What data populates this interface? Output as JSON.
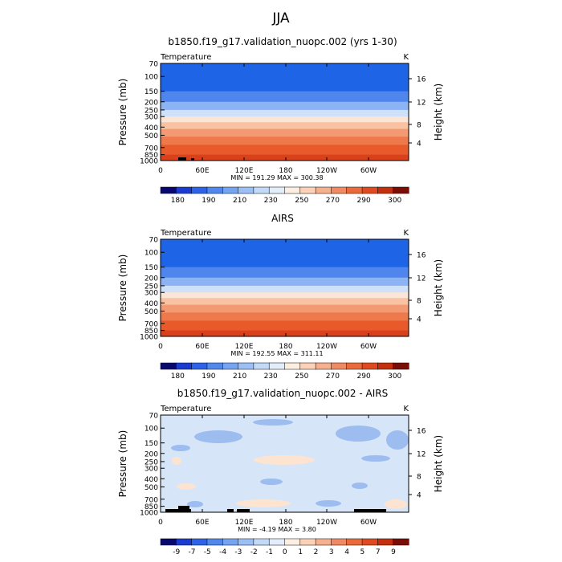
{
  "figure": {
    "title": "JJA",
    "title_color": "#8a8a8a"
  },
  "chart_data": [
    {
      "type": "heatmap",
      "title": "b1850.f19_g17.validation_nuopc.002 (yrs 1-30)",
      "variable": "Temperature",
      "units": "K",
      "ylabel": "Pressure (mb)",
      "y2label": "Height (km)",
      "x_ticks": [
        "0",
        "60E",
        "120E",
        "180",
        "120W",
        "60W"
      ],
      "y_ticks": [
        "70",
        "100",
        "150",
        "200",
        "250",
        "300",
        "400",
        "500",
        "700",
        "850",
        "1000"
      ],
      "y2_ticks": [
        "16",
        "12",
        "8",
        "4"
      ],
      "minmax_text": "MIN = 191.29   MAX = 300.38",
      "colorbar_labels": [
        "180",
        "190",
        "210",
        "230",
        "250",
        "270",
        "290",
        "300"
      ],
      "bands": [
        {
          "p_top": 70,
          "p_bot": 150,
          "color": "#1d64e6"
        },
        {
          "p_top": 150,
          "p_bot": 200,
          "color": "#4f86ee"
        },
        {
          "p_top": 200,
          "p_bot": 250,
          "color": "#8cb3f4"
        },
        {
          "p_top": 250,
          "p_bot": 300,
          "color": "#cfe1f8"
        },
        {
          "p_top": 300,
          "p_bot": 350,
          "color": "#fbe5d6"
        },
        {
          "p_top": 350,
          "p_bot": 420,
          "color": "#f9c3a3"
        },
        {
          "p_top": 420,
          "p_bot": 520,
          "color": "#f49a72"
        },
        {
          "p_top": 520,
          "p_bot": 650,
          "color": "#ee7a4c"
        },
        {
          "p_top": 650,
          "p_bot": 850,
          "color": "#e85a2a"
        },
        {
          "p_top": 850,
          "p_bot": 1000,
          "color": "#d9401c"
        }
      ],
      "terrain": true
    },
    {
      "type": "heatmap",
      "title": "AIRS",
      "variable": "Temperature",
      "units": "K",
      "ylabel": "Pressure (mb)",
      "y2label": "Height (km)",
      "x_ticks": [
        "0",
        "60E",
        "120E",
        "180",
        "120W",
        "60W"
      ],
      "y_ticks": [
        "70",
        "100",
        "150",
        "200",
        "250",
        "300",
        "400",
        "500",
        "700",
        "850",
        "1000"
      ],
      "y2_ticks": [
        "16",
        "12",
        "8",
        "4"
      ],
      "minmax_text": "MIN = 192.55   MAX = 311.11",
      "colorbar_labels": [
        "180",
        "190",
        "210",
        "230",
        "250",
        "270",
        "290",
        "300"
      ],
      "bands": [
        {
          "p_top": 70,
          "p_bot": 150,
          "color": "#1d64e6"
        },
        {
          "p_top": 150,
          "p_bot": 200,
          "color": "#4f86ee"
        },
        {
          "p_top": 200,
          "p_bot": 250,
          "color": "#8cb3f4"
        },
        {
          "p_top": 250,
          "p_bot": 300,
          "color": "#cfe1f8"
        },
        {
          "p_top": 300,
          "p_bot": 350,
          "color": "#fbe5d6"
        },
        {
          "p_top": 350,
          "p_bot": 420,
          "color": "#f9c3a3"
        },
        {
          "p_top": 420,
          "p_bot": 520,
          "color": "#f49a72"
        },
        {
          "p_top": 520,
          "p_bot": 650,
          "color": "#ee7a4c"
        },
        {
          "p_top": 650,
          "p_bot": 850,
          "color": "#e85a2a"
        },
        {
          "p_top": 850,
          "p_bot": 1000,
          "color": "#d9401c"
        }
      ],
      "terrain": false
    },
    {
      "type": "heatmap",
      "title": "b1850.f19_g17.validation_nuopc.002 - AIRS",
      "variable": "Temperature",
      "units": "K",
      "ylabel": "Pressure (mb)",
      "y2label": "Height (km)",
      "x_ticks": [
        "0",
        "60E",
        "120E",
        "180",
        "120W",
        "60W"
      ],
      "y_ticks": [
        "70",
        "100",
        "150",
        "200",
        "250",
        "300",
        "400",
        "500",
        "700",
        "850",
        "1000"
      ],
      "y2_ticks": [
        "16",
        "12",
        "8",
        "4"
      ],
      "minmax_text": "MIN =  -4.19   MAX =   3.80",
      "colorbar_labels": [
        "-9",
        "-7",
        "-5",
        "-4",
        "-3",
        "-2",
        "-1",
        "0",
        "1",
        "2",
        "3",
        "4",
        "5",
        "7",
        "9"
      ],
      "background_color": "#d6e6f8",
      "terrain": true
    }
  ],
  "colorbar_colors": [
    "#08086e",
    "#1a3ad0",
    "#2e62e8",
    "#5088ee",
    "#74a4f2",
    "#9cc0f6",
    "#c2daf8",
    "#e2eefa",
    "#fcefe2",
    "#fbd2b8",
    "#f7b08e",
    "#f18a62",
    "#ea6a3c",
    "#df4a20",
    "#c4300e",
    "#7a0d06"
  ],
  "diff_colorbar_colors": [
    "#08086e",
    "#1a3ad0",
    "#2e62e8",
    "#5088ee",
    "#74a4f2",
    "#9cc0f6",
    "#c2daf8",
    "#e2eefa",
    "#fcefe2",
    "#fbd2b8",
    "#f7b08e",
    "#f18a62",
    "#ea6a3c",
    "#df4a20",
    "#c4300e",
    "#7a0d06"
  ]
}
